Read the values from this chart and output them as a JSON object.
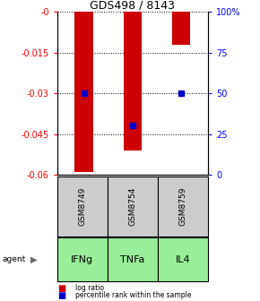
{
  "title": "GDS498 / 8143",
  "samples": [
    "GSM8749",
    "GSM8754",
    "GSM8759"
  ],
  "agents": [
    "IFNg",
    "TNFa",
    "IL4"
  ],
  "log_ratios": [
    -0.059,
    -0.051,
    -0.012
  ],
  "percentile_ranks": [
    0.5,
    0.3,
    0.5
  ],
  "left_ylim": [
    -0.06,
    0.0
  ],
  "left_yticks": [
    -0.06,
    -0.045,
    -0.03,
    -0.015,
    0.0
  ],
  "left_yticklabels": [
    "-0.06",
    "-0.045",
    "-0.03",
    "-0.015",
    "-0"
  ],
  "right_yticks": [
    0.0,
    0.25,
    0.5,
    0.75,
    1.0
  ],
  "right_yticklabels": [
    "0",
    "25",
    "50",
    "75",
    "100%"
  ],
  "bar_color": "#cc0000",
  "dot_color": "#0000cc",
  "sample_box_color": "#cccccc",
  "agent_box_color": "#99ee99",
  "bar_width": 0.38
}
